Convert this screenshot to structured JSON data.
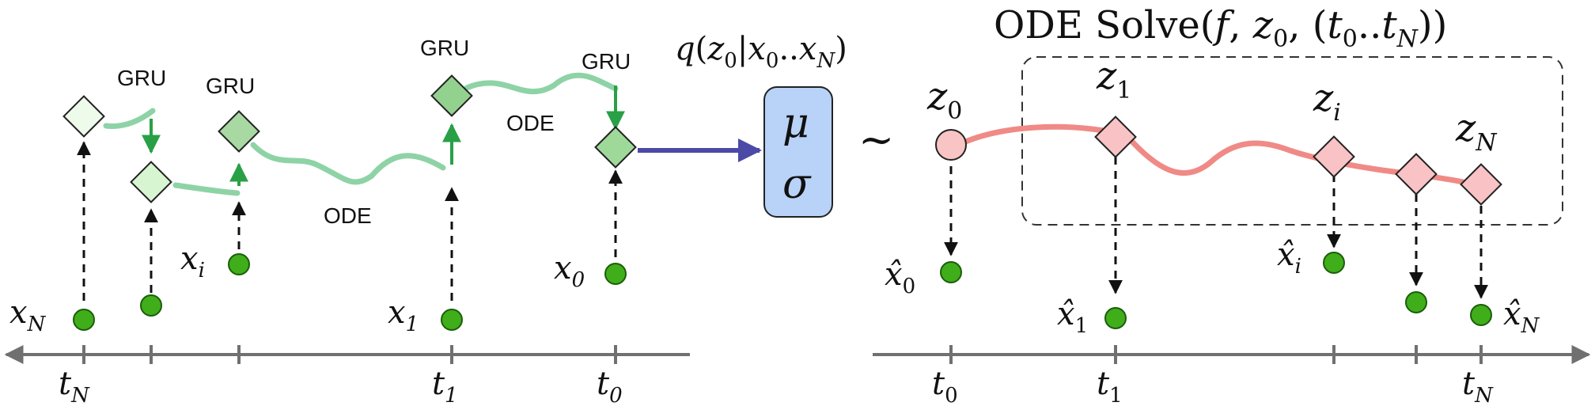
{
  "labels": {
    "gru_1": "GRU",
    "gru_2": "GRU",
    "gru_3": "GRU",
    "gru_4": "GRU",
    "ode_upper": "ODE",
    "ode_lower": "ODE",
    "posterior": "q(z₀|x₀..x_N)",
    "posterior_parts": {
      "q": "q",
      "open": "(",
      "z": "z",
      "z_sub": "0",
      "bar": "|",
      "x": "x",
      "x_sub": "0",
      "dots": "..",
      "x2": "x",
      "x2_sub": "N",
      "close": ")"
    },
    "mu": "μ",
    "sigma": "σ",
    "tilde": "~",
    "ode_solve_title": "ODE Solve(f, z₀, (t₀..t_N))",
    "ode_solve_parts": {
      "head": "ODE Solve(",
      "f": "f",
      "comma1": ", ",
      "z": "z",
      "z_sub": "0",
      "comma2": ", (",
      "t1": "t",
      "t1_sub": "0",
      "dots": "..",
      "t2": "t",
      "t2_sub": "N",
      "close": "))"
    }
  },
  "encoder": {
    "observations": [
      {
        "name": "x",
        "sub": "N"
      },
      {
        "name": "x",
        "sub": "i"
      },
      {
        "name": "x",
        "sub": "1"
      },
      {
        "name": "x",
        "sub": "0"
      }
    ],
    "time_ticks": [
      {
        "name": "t",
        "sub": "N"
      },
      {
        "name": "t",
        "sub": "1"
      },
      {
        "name": "t",
        "sub": "0"
      }
    ]
  },
  "decoder": {
    "latents": [
      {
        "name": "z",
        "sub": "0"
      },
      {
        "name": "z",
        "sub": "1"
      },
      {
        "name": "z",
        "sub": "i"
      },
      {
        "name": "z",
        "sub": "N"
      }
    ],
    "reconstructions": [
      {
        "name": "x̂",
        "sub": "0"
      },
      {
        "name": "x̂",
        "sub": "1"
      },
      {
        "name": "x̂",
        "sub": "i"
      },
      {
        "name": "x̂",
        "sub": "N"
      }
    ],
    "time_ticks": [
      {
        "name": "t",
        "sub": "0"
      },
      {
        "name": "t",
        "sub": "1"
      },
      {
        "name": "t",
        "sub": "N"
      }
    ]
  },
  "colors": {
    "axis": "#707070",
    "dashed_arrow": "#111111",
    "obs_dot_fill": "#3fae1a",
    "obs_dot_stroke": "#1b5e0a",
    "gru_arrow": "#2aa046",
    "ode_curve_left": "#8ed3a6",
    "ode_curve_right": "#f08a86",
    "diamond_light": "#eefbea",
    "diamond_mid": "#c7efc0",
    "diamond_dark": "#93d28e",
    "diamond_latent": "#f9c3c5",
    "node_z0": "#f8c4c4",
    "mu_sigma_box": "#b8d2f8",
    "encode_arrow": "#4b4aa6"
  }
}
